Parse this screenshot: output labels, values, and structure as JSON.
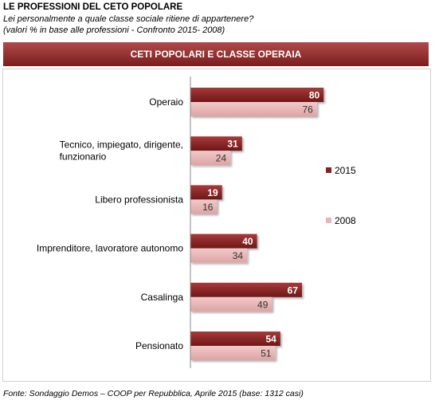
{
  "header": {
    "title": "LE PROFESSIONI DEL CETO POPOLARE",
    "subtitle_line1": "Lei personalmente a quale classe sociale ritiene di appartenere?",
    "subtitle_line2": "(valori % in base alle professioni - Confronto 2015- 2008)"
  },
  "banner": {
    "label": "CETI POPOLARI E CLASSE OPERAIA"
  },
  "source": "Fonte: Sondaggio Demos – COOP per Repubblica, Aprile 2015 (base: 1312 casi)",
  "colors": {
    "s2015": "#8b1f1f",
    "s2008": "#e8b5b5",
    "banner": "#96302f"
  },
  "chart_data": {
    "type": "bar",
    "orientation": "horizontal",
    "categories": [
      [
        "Operaio"
      ],
      [
        "Tecnico, impiegato, dirigente,",
        "funzionario"
      ],
      [
        "Libero professionista"
      ],
      [
        "Imprenditore, lavoratore autonomo"
      ],
      [
        "Casalinga"
      ],
      [
        "Pensionato"
      ]
    ],
    "series": [
      {
        "name": "2015",
        "values": [
          80,
          31,
          19,
          40,
          67,
          54
        ]
      },
      {
        "name": "2008",
        "values": [
          76,
          24,
          16,
          34,
          49,
          51
        ]
      }
    ],
    "xlim": [
      0,
      100
    ],
    "grid": false,
    "legend": "right"
  }
}
